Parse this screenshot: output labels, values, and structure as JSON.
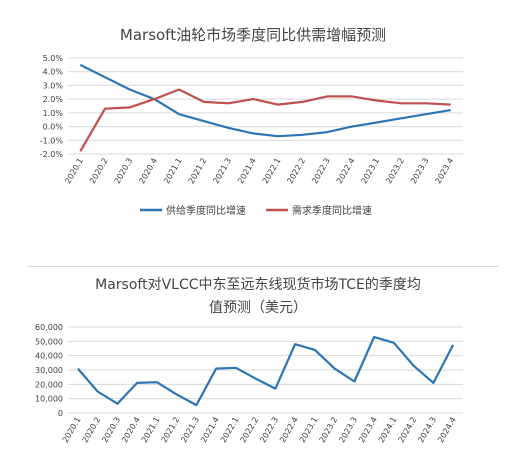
{
  "chart_data": [
    {
      "type": "line",
      "title": "Marsoft油轮市场季度同比供需增幅预测",
      "categories": [
        "2020.1",
        "2020.2",
        "2020.3",
        "2020.4",
        "2021.1",
        "2021.2",
        "2021.3",
        "2021.4",
        "2022.1",
        "2022.2",
        "2022.3",
        "2022.4",
        "2023.1",
        "2023.2",
        "2023.3",
        "2023.4"
      ],
      "series": [
        {
          "name": "供给季度同比增速",
          "color": "#2e75b6",
          "values": [
            4.5,
            3.6,
            2.7,
            2.0,
            0.9,
            0.4,
            -0.1,
            -0.5,
            -0.7,
            -0.6,
            -0.4,
            0.0,
            0.3,
            0.6,
            0.9,
            1.2
          ]
        },
        {
          "name": "需求季度同比增速",
          "color": "#c0504d",
          "values": [
            -1.8,
            1.3,
            1.4,
            2.0,
            2.7,
            1.8,
            1.7,
            2.0,
            1.6,
            1.8,
            2.2,
            2.2,
            1.9,
            1.7,
            1.7,
            1.6
          ]
        }
      ],
      "yticks": [
        "5.0%",
        "4.0%",
        "3.0%",
        "2.0%",
        "1.0%",
        "0.0%",
        "-1.0%",
        "-2.0%"
      ],
      "ylim": [
        -2,
        5
      ],
      "legend": "bottom"
    },
    {
      "type": "line",
      "title_line1": "Marsoft对VLCC中东至远东线现货市场TCE的季度均",
      "title_line2": "值预测（美元）",
      "categories": [
        "2020.1",
        "2020.2",
        "2020.3",
        "2020.4",
        "2021.1",
        "2021.2",
        "2021.3",
        "2021.4",
        "2022.1",
        "2022.2",
        "2022.3",
        "2022.4",
        "2023.1",
        "2023.2",
        "2023.3",
        "2023.4",
        "2024.1",
        "2024.2",
        "2024.3",
        "2024.4"
      ],
      "series": [
        {
          "color": "#2e75b6",
          "values": [
            31000,
            15000,
            6500,
            21000,
            21500,
            13000,
            5500,
            31000,
            31500,
            24000,
            17000,
            48000,
            44000,
            31000,
            22000,
            53000,
            49000,
            33000,
            21000,
            47500
          ]
        }
      ],
      "yticks": [
        "60,000",
        "50,000",
        "40,000",
        "30,000",
        "20,000",
        "10,000",
        "0"
      ],
      "ylim": [
        0,
        60000
      ]
    }
  ]
}
